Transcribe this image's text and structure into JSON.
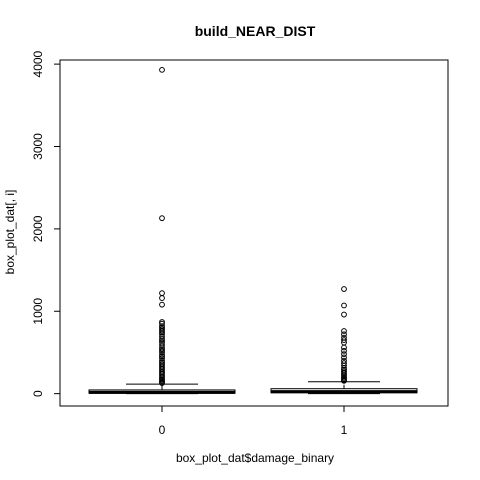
{
  "chart_data": {
    "type": "box",
    "title": "build_NEAR_DIST",
    "xlabel": "box_plot_dat$damage_binary",
    "ylabel": "box_plot_dat[, i]",
    "ylim": [
      -150,
      4050
    ],
    "yticks": [
      0,
      1000,
      2000,
      3000,
      4000
    ],
    "categories": [
      "0",
      "1"
    ],
    "grid": false,
    "legend": "none",
    "boxes": [
      {
        "category": "0",
        "whisker_low": 0,
        "q1": 5,
        "median": 15,
        "q3": 45,
        "whisker_high": 115,
        "outliers": [
          3930,
          2130,
          1220,
          1160,
          1080,
          870,
          850,
          820,
          800,
          780,
          760,
          740,
          720,
          690,
          660,
          640,
          620,
          590,
          560,
          540,
          520,
          500,
          470,
          450,
          430,
          400,
          380,
          360,
          340,
          320,
          300,
          280,
          260,
          240,
          220,
          200,
          185,
          170,
          155,
          140,
          128
        ]
      },
      {
        "category": "1",
        "whisker_low": 0,
        "q1": 10,
        "median": 25,
        "q3": 60,
        "whisker_high": 145,
        "outliers": [
          1270,
          1070,
          960,
          760,
          720,
          680,
          650,
          620,
          560,
          520,
          480,
          440,
          400,
          370,
          340,
          310,
          290,
          270,
          250,
          230,
          210,
          195,
          180,
          165,
          155
        ]
      }
    ]
  }
}
